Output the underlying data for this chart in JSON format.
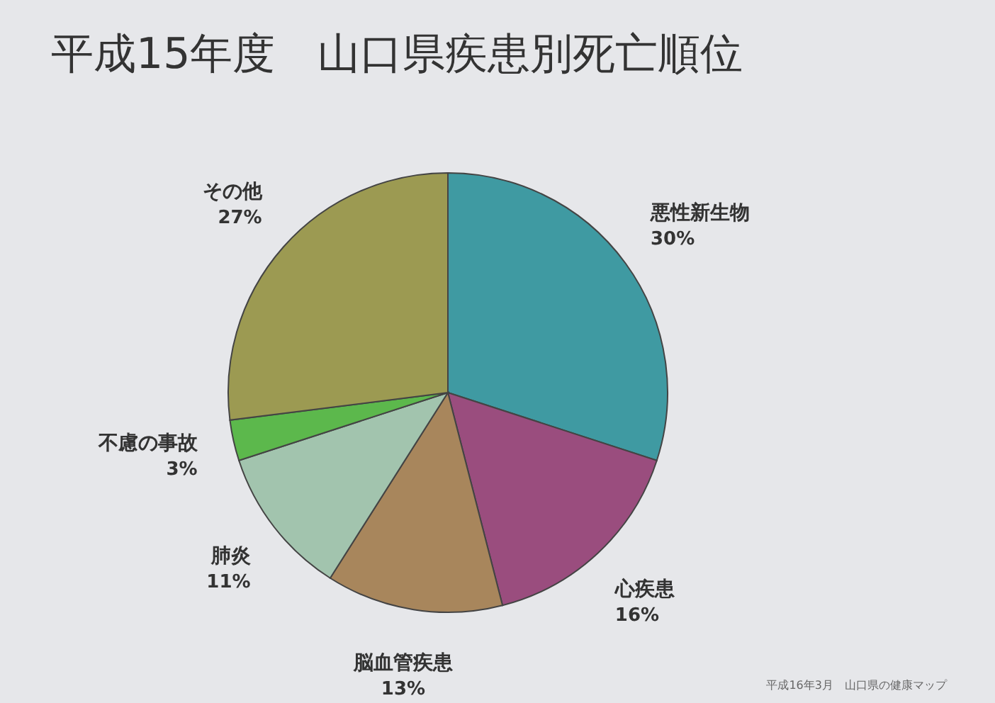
{
  "chart_data": {
    "type": "pie",
    "title": "平成15年度　山口県疾患別死亡順位",
    "categories": [
      "悪性新生物",
      "心疾患",
      "脳血管疾患",
      "肺炎",
      "不慮の事故",
      "その他"
    ],
    "values": [
      30,
      16,
      13,
      11,
      3,
      27
    ],
    "value_labels": [
      "30%",
      "16%",
      "13%",
      "11%",
      "3%",
      "27%"
    ],
    "colors": [
      "#3f9aa2",
      "#9a4d7e",
      "#a8865c",
      "#a2c4ae",
      "#5cb84c",
      "#9c9a52"
    ],
    "annotations": [
      "平成16年3月　山口県の健康マップ"
    ]
  }
}
